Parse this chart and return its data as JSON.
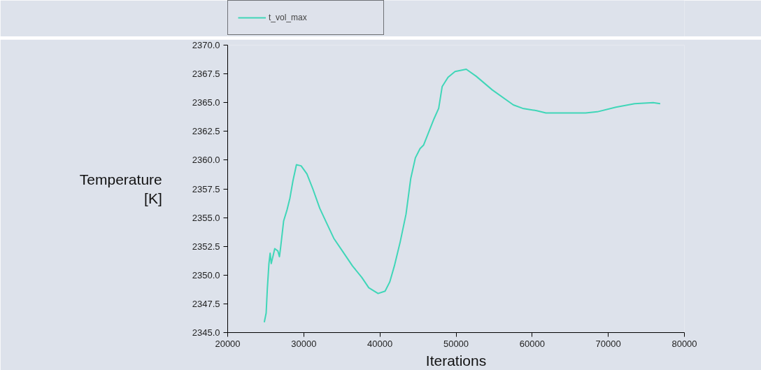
{
  "chart_data": {
    "type": "line",
    "xlabel": "Iterations",
    "ylabel": "Temperature [K]",
    "x": [
      24810,
      25055,
      25210,
      25420,
      25580,
      25725,
      26185,
      26590,
      26800,
      26955,
      27350,
      27810,
      28180,
      28575,
      29035,
      29650,
      30410,
      31185,
      32100,
      33020,
      33940,
      35165,
      36390,
      37620,
      38535,
      39760,
      40680,
      41290,
      41900,
      42670,
      43430,
      44050,
      44660,
      45270,
      45730,
      47110,
      47720,
      48180,
      48950,
      49870,
      51340,
      52630,
      54770,
      57530,
      58750,
      60590,
      61810,
      64880,
      67020,
      68550,
      71000,
      73450,
      75900,
      76820
    ],
    "series": [
      {
        "name": "t_vol_max",
        "color": "#40d6b8",
        "values": [
          2345.9,
          2346.7,
          2348.8,
          2351.0,
          2351.9,
          2351.0,
          2352.3,
          2352.1,
          2351.6,
          2352.4,
          2354.7,
          2355.7,
          2356.7,
          2358.2,
          2359.6,
          2359.5,
          2358.8,
          2357.5,
          2355.8,
          2354.5,
          2353.2,
          2352.0,
          2350.8,
          2349.8,
          2348.9,
          2348.4,
          2348.6,
          2349.4,
          2350.8,
          2352.9,
          2355.3,
          2358.4,
          2360.2,
          2361.0,
          2361.3,
          2363.6,
          2364.5,
          2366.4,
          2367.2,
          2367.7,
          2367.9,
          2367.3,
          2366.1,
          2364.8,
          2364.5,
          2364.3,
          2364.1,
          2364.1,
          2364.1,
          2364.2,
          2364.6,
          2364.9,
          2365.0,
          2364.9
        ]
      }
    ],
    "xlim": [
      20000,
      80000
    ],
    "xticks": [
      20000,
      30000,
      40000,
      50000,
      60000,
      70000,
      80000
    ],
    "ylim": [
      2345,
      2370
    ],
    "yticks": [
      {
        "value": 2345,
        "label": "2345.0"
      },
      2347.5,
      {
        "value": 2350,
        "label": "2350.0"
      },
      2352.5,
      {
        "value": 2355,
        "label": "2355.0"
      },
      2357.5,
      {
        "value": 2360,
        "label": "2360.0"
      },
      2362.5,
      {
        "value": 2365,
        "label": "2365.0"
      },
      2367.5,
      {
        "value": 2370,
        "label": "2370.0"
      }
    ],
    "legend": "top left",
    "grid": false
  }
}
